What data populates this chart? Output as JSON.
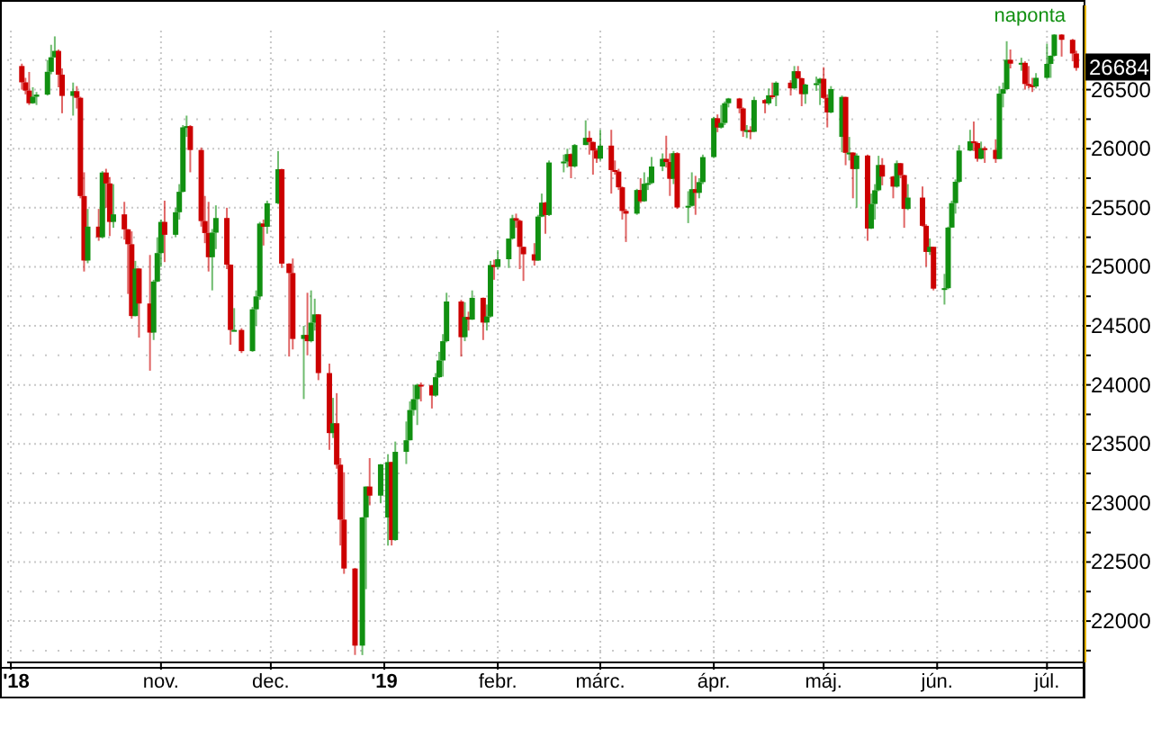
{
  "chart_data": {
    "type": "candlestick",
    "subtitle": "naponta",
    "annotations": [
      {
        "text": "26684",
        "x": "2019-07-09",
        "y": 26684
      }
    ],
    "x": [
      "2018-09-24",
      "2018-09-25",
      "2018-09-26",
      "2018-09-27",
      "2018-09-28",
      "2018-10-01",
      "2018-10-02",
      "2018-10-03",
      "2018-10-04",
      "2018-10-05",
      "2018-10-08",
      "2018-10-09",
      "2018-10-10",
      "2018-10-11",
      "2018-10-12",
      "2018-10-15",
      "2018-10-16",
      "2018-10-17",
      "2018-10-18",
      "2018-10-19",
      "2018-10-22",
      "2018-10-23",
      "2018-10-24",
      "2018-10-25",
      "2018-10-26",
      "2018-10-29",
      "2018-10-30",
      "2018-10-31",
      "2018-11-01",
      "2018-11-02",
      "2018-11-05",
      "2018-11-06",
      "2018-11-07",
      "2018-11-08",
      "2018-11-09",
      "2018-11-12",
      "2018-11-13",
      "2018-11-14",
      "2018-11-15",
      "2018-11-16",
      "2018-11-19",
      "2018-11-20",
      "2018-11-21",
      "2018-11-23",
      "2018-11-26",
      "2018-11-27",
      "2018-11-28",
      "2018-11-29",
      "2018-11-30",
      "2018-12-03",
      "2018-12-04",
      "2018-12-06",
      "2018-12-07",
      "2018-12-10",
      "2018-12-11",
      "2018-12-12",
      "2018-12-13",
      "2018-12-14",
      "2018-12-17",
      "2018-12-18",
      "2018-12-19",
      "2018-12-20",
      "2018-12-21",
      "2018-12-24",
      "2018-12-26",
      "2018-12-27",
      "2018-12-28",
      "2018-12-31",
      "2019-01-02",
      "2019-01-03",
      "2019-01-04",
      "2019-01-07",
      "2019-01-08",
      "2019-01-09",
      "2019-01-10",
      "2019-01-11",
      "2019-01-14",
      "2019-01-15",
      "2019-01-16",
      "2019-01-17",
      "2019-01-18",
      "2019-01-22",
      "2019-01-23",
      "2019-01-24",
      "2019-01-25",
      "2019-01-28",
      "2019-01-29",
      "2019-01-30",
      "2019-01-31",
      "2019-02-01",
      "2019-02-04",
      "2019-02-05",
      "2019-02-06",
      "2019-02-07",
      "2019-02-08",
      "2019-02-11",
      "2019-02-12",
      "2019-02-13",
      "2019-02-14",
      "2019-02-15",
      "2019-02-19",
      "2019-02-20",
      "2019-02-21",
      "2019-02-22",
      "2019-02-25",
      "2019-02-26",
      "2019-02-27",
      "2019-02-28",
      "2019-03-01",
      "2019-03-04",
      "2019-03-05",
      "2019-03-06",
      "2019-03-07",
      "2019-03-08",
      "2019-03-11",
      "2019-03-12",
      "2019-03-13",
      "2019-03-14",
      "2019-03-15",
      "2019-03-18",
      "2019-03-19",
      "2019-03-20",
      "2019-03-21",
      "2019-03-22",
      "2019-03-25",
      "2019-03-26",
      "2019-03-27",
      "2019-03-28",
      "2019-03-29",
      "2019-04-01",
      "2019-04-02",
      "2019-04-03",
      "2019-04-04",
      "2019-04-05",
      "2019-04-08",
      "2019-04-09",
      "2019-04-10",
      "2019-04-11",
      "2019-04-12",
      "2019-04-15",
      "2019-04-16",
      "2019-04-17",
      "2019-04-18",
      "2019-04-22",
      "2019-04-23",
      "2019-04-24",
      "2019-04-25",
      "2019-04-26",
      "2019-04-29",
      "2019-04-30",
      "2019-05-01",
      "2019-05-02",
      "2019-05-03",
      "2019-05-06",
      "2019-05-07",
      "2019-05-08",
      "2019-05-09",
      "2019-05-10",
      "2019-05-13",
      "2019-05-14",
      "2019-05-15",
      "2019-05-16",
      "2019-05-17",
      "2019-05-20",
      "2019-05-21",
      "2019-05-22",
      "2019-05-23",
      "2019-05-24",
      "2019-05-28",
      "2019-05-29",
      "2019-05-30",
      "2019-05-31",
      "2019-06-03",
      "2019-06-04",
      "2019-06-05",
      "2019-06-06",
      "2019-06-07",
      "2019-06-10",
      "2019-06-11",
      "2019-06-12",
      "2019-06-13",
      "2019-06-14",
      "2019-06-17",
      "2019-06-18",
      "2019-06-19",
      "2019-06-20",
      "2019-06-21",
      "2019-06-24",
      "2019-06-25",
      "2019-06-26",
      "2019-06-27",
      "2019-06-28",
      "2019-07-01",
      "2019-07-02",
      "2019-07-03",
      "2019-07-05",
      "2019-07-08",
      "2019-07-09"
    ],
    "ohlc": [
      [
        26700,
        26720,
        26500,
        26562
      ],
      [
        26562,
        26600,
        26460,
        26492
      ],
      [
        26492,
        26650,
        26370,
        26385
      ],
      [
        26385,
        26520,
        26380,
        26440
      ],
      [
        26440,
        26480,
        26370,
        26458
      ],
      [
        26458,
        26750,
        26450,
        26651
      ],
      [
        26651,
        26880,
        26630,
        26774
      ],
      [
        26774,
        26951,
        26770,
        26828
      ],
      [
        26828,
        26840,
        26520,
        26627
      ],
      [
        26627,
        26680,
        26300,
        26447
      ],
      [
        26447,
        26560,
        26280,
        26487
      ],
      [
        26487,
        26530,
        26340,
        26431
      ],
      [
        26431,
        26440,
        25580,
        25599
      ],
      [
        25599,
        25800,
        24960,
        25053
      ],
      [
        25053,
        25490,
        25030,
        25340
      ],
      [
        25340,
        25490,
        25220,
        25250
      ],
      [
        25250,
        25810,
        25240,
        25798
      ],
      [
        25798,
        25830,
        25500,
        25706
      ],
      [
        25706,
        25760,
        25260,
        25380
      ],
      [
        25380,
        25700,
        25330,
        25444
      ],
      [
        25444,
        25550,
        25230,
        25317
      ],
      [
        25317,
        25320,
        24770,
        25191
      ],
      [
        25191,
        25300,
        24560,
        24583
      ],
      [
        24583,
        25050,
        24580,
        24985
      ],
      [
        24985,
        24990,
        24400,
        24689
      ],
      [
        24689,
        25100,
        24120,
        24443
      ],
      [
        24443,
        24890,
        24380,
        24875
      ],
      [
        24875,
        25250,
        24870,
        25116
      ],
      [
        25116,
        25400,
        25000,
        25380
      ],
      [
        25380,
        25560,
        25040,
        25271
      ],
      [
        25271,
        25500,
        25250,
        25462
      ],
      [
        25462,
        25700,
        25400,
        25635
      ],
      [
        25635,
        26200,
        25630,
        26181
      ],
      [
        26181,
        26280,
        26100,
        26191
      ],
      [
        26191,
        26200,
        25800,
        25989
      ],
      [
        25989,
        26010,
        25340,
        25387
      ],
      [
        25387,
        25600,
        25200,
        25286
      ],
      [
        25286,
        25550,
        24960,
        25081
      ],
      [
        25081,
        25320,
        24800,
        25289
      ],
      [
        25289,
        25520,
        25150,
        25413
      ],
      [
        25413,
        25500,
        24980,
        25018
      ],
      [
        25018,
        25020,
        24340,
        24465
      ],
      [
        24465,
        24650,
        24460,
        24465
      ],
      [
        24465,
        24480,
        24270,
        24286
      ],
      [
        24286,
        24660,
        24280,
        24640
      ],
      [
        24640,
        24800,
        24500,
        24749
      ],
      [
        24749,
        25380,
        24720,
        25366
      ],
      [
        25366,
        25400,
        25180,
        25339
      ],
      [
        25339,
        25560,
        25280,
        25538
      ],
      [
        25538,
        25980,
        25530,
        25826
      ],
      [
        25826,
        25830,
        24990,
        25027
      ],
      [
        25027,
        25030,
        24240,
        24947
      ],
      [
        24947,
        25070,
        24300,
        24389
      ],
      [
        24389,
        24500,
        23880,
        24423
      ],
      [
        24423,
        24780,
        24250,
        24370
      ],
      [
        24370,
        24800,
        24360,
        24527
      ],
      [
        24527,
        24730,
        24460,
        24597
      ],
      [
        24597,
        24600,
        24040,
        24100
      ],
      [
        24100,
        24180,
        23450,
        23592
      ],
      [
        23592,
        23890,
        23550,
        23675
      ],
      [
        23675,
        23930,
        23290,
        23324
      ],
      [
        23324,
        23380,
        22640,
        22859
      ],
      [
        22859,
        23260,
        22400,
        22445
      ],
      [
        22445,
        22450,
        21713,
        21792
      ],
      [
        21792,
        22880,
        21712,
        22878
      ],
      [
        22878,
        23140,
        22270,
        23139
      ],
      [
        23139,
        23380,
        22980,
        23062
      ],
      [
        23062,
        23330,
        23000,
        23327
      ],
      [
        22877,
        23413,
        22639,
        23346
      ],
      [
        23346,
        23350,
        22640,
        22686
      ],
      [
        22686,
        23520,
        22680,
        23433
      ],
      [
        23433,
        23690,
        23330,
        23531
      ],
      [
        23531,
        23860,
        23530,
        23787
      ],
      [
        23787,
        24000,
        23740,
        23879
      ],
      [
        23879,
        24010,
        23660,
        24001
      ],
      [
        24001,
        24020,
        23860,
        23996
      ],
      [
        23996,
        24000,
        23800,
        23910
      ],
      [
        23910,
        24100,
        23900,
        24065
      ],
      [
        24065,
        24280,
        24060,
        24207
      ],
      [
        24207,
        24430,
        24070,
        24370
      ],
      [
        24370,
        24780,
        24360,
        24706
      ],
      [
        24706,
        24720,
        24240,
        24404
      ],
      [
        24404,
        24700,
        24370,
        24575
      ],
      [
        24575,
        24620,
        24460,
        24553
      ],
      [
        24553,
        24800,
        24550,
        24737
      ],
      [
        24737,
        24740,
        24380,
        24528
      ],
      [
        24528,
        24680,
        24460,
        24579
      ],
      [
        24579,
        25050,
        24570,
        25015
      ],
      [
        25015,
        25060,
        24890,
        24999
      ],
      [
        24999,
        25140,
        24980,
        25064
      ],
      [
        25064,
        25240,
        24990,
        25239
      ],
      [
        25239,
        25440,
        25230,
        25411
      ],
      [
        25411,
        25450,
        25330,
        25390
      ],
      [
        25390,
        25400,
        24980,
        25169
      ],
      [
        25169,
        25170,
        24880,
        25106
      ],
      [
        25106,
        25200,
        25010,
        25053
      ],
      [
        25053,
        25440,
        25050,
        25425
      ],
      [
        25425,
        25620,
        25420,
        25543
      ],
      [
        25543,
        25550,
        25280,
        25439
      ],
      [
        25439,
        25900,
        25430,
        25883
      ],
      [
        25883,
        25950,
        25800,
        25891
      ],
      [
        25891,
        26000,
        25840,
        25954
      ],
      [
        25954,
        25960,
        25750,
        25850
      ],
      [
        25850,
        26040,
        25840,
        26031
      ],
      [
        26031,
        26240,
        26030,
        26092
      ],
      [
        26092,
        26150,
        25950,
        26057
      ],
      [
        26057,
        26060,
        25780,
        25985
      ],
      [
        25985,
        26000,
        25880,
        25916
      ],
      [
        25916,
        26160,
        25900,
        26026
      ],
      [
        26026,
        26160,
        25620,
        25819
      ],
      [
        25819,
        25900,
        25780,
        25806
      ],
      [
        25806,
        25830,
        25650,
        25673
      ],
      [
        25673,
        25680,
        25400,
        25473
      ],
      [
        25473,
        25490,
        25210,
        25450
      ],
      [
        25450,
        25660,
        25440,
        25650
      ],
      [
        25650,
        25750,
        25540,
        25555
      ],
      [
        25555,
        25800,
        25550,
        25703
      ],
      [
        25703,
        25760,
        25650,
        25709
      ],
      [
        25709,
        25930,
        25700,
        25849
      ],
      [
        25849,
        25960,
        25810,
        25914
      ],
      [
        25914,
        26110,
        25840,
        25887
      ],
      [
        25887,
        25960,
        25600,
        25745
      ],
      [
        25745,
        25980,
        25700,
        25962
      ],
      [
        25962,
        25970,
        25490,
        25502
      ],
      [
        25502,
        25640,
        25370,
        25516
      ],
      [
        25516,
        25800,
        25510,
        25657
      ],
      [
        25657,
        25770,
        25440,
        25626
      ],
      [
        25626,
        25750,
        25580,
        25717
      ],
      [
        25717,
        25950,
        25700,
        25929
      ],
      [
        25929,
        26270,
        25920,
        26258
      ],
      [
        26258,
        26290,
        26140,
        26179
      ],
      [
        26179,
        26370,
        26170,
        26218
      ],
      [
        26218,
        26400,
        26200,
        26385
      ],
      [
        26385,
        26430,
        26350,
        26425
      ],
      [
        26425,
        26430,
        26300,
        26341
      ],
      [
        26341,
        26350,
        26100,
        26150
      ],
      [
        26150,
        26200,
        26090,
        26157
      ],
      [
        26157,
        26190,
        26080,
        26143
      ],
      [
        26143,
        26440,
        26140,
        26412
      ],
      [
        26412,
        26420,
        26300,
        26384
      ],
      [
        26384,
        26510,
        26370,
        26452
      ],
      [
        26452,
        26560,
        26420,
        26449
      ],
      [
        26449,
        26570,
        26360,
        26559
      ],
      [
        26559,
        26580,
        26450,
        26511
      ],
      [
        26511,
        26700,
        26500,
        26656
      ],
      [
        26656,
        26700,
        26590,
        26597
      ],
      [
        26597,
        26600,
        26360,
        26462
      ],
      [
        26462,
        26550,
        26380,
        26543
      ],
      [
        26543,
        26610,
        26490,
        26554
      ],
      [
        26554,
        26600,
        26370,
        26592
      ],
      [
        26592,
        26690,
        26420,
        26430
      ],
      [
        26430,
        26460,
        26180,
        26307
      ],
      [
        26307,
        26530,
        26300,
        26505
      ],
      [
        26100,
        26450,
        25970,
        26438
      ],
      [
        26438,
        26440,
        25860,
        25965
      ],
      [
        25965,
        26100,
        25900,
        25967
      ],
      [
        25967,
        25970,
        25580,
        25828
      ],
      [
        25828,
        25960,
        25500,
        25942
      ],
      [
        25942,
        25950,
        25220,
        25324
      ],
      [
        25324,
        25620,
        25320,
        25532
      ],
      [
        25532,
        25700,
        25400,
        25648
      ],
      [
        25648,
        25940,
        25640,
        25862
      ],
      [
        25862,
        25920,
        25690,
        25764
      ],
      [
        25764,
        25770,
        25580,
        25679
      ],
      [
        25679,
        25900,
        25670,
        25877
      ],
      [
        25877,
        25880,
        25750,
        25776
      ],
      [
        25776,
        25780,
        25330,
        25490
      ],
      [
        25490,
        25700,
        25480,
        25586
      ],
      [
        25586,
        25680,
        25340,
        25347
      ],
      [
        25347,
        25360,
        25000,
        25126
      ],
      [
        25126,
        25240,
        25100,
        25169
      ],
      [
        25169,
        25170,
        24800,
        24815
      ],
      [
        24815,
        24940,
        24680,
        24819
      ],
      [
        24819,
        25340,
        24810,
        25332
      ],
      [
        25332,
        25560,
        25330,
        25539
      ],
      [
        25539,
        25740,
        25450,
        25720
      ],
      [
        25720,
        26030,
        25710,
        25984
      ],
      [
        25984,
        26160,
        25980,
        26062
      ],
      [
        26062,
        26230,
        25980,
        26048
      ],
      [
        26048,
        26060,
        25890,
        25915
      ],
      [
        25915,
        26060,
        25910,
        26004
      ],
      [
        26004,
        26020,
        25880,
        25990
      ],
      [
        25990,
        26080,
        25880,
        25913
      ],
      [
        25913,
        26530,
        25910,
        26466
      ],
      [
        26466,
        26560,
        26350,
        26504
      ],
      [
        26504,
        26910,
        26500,
        26753
      ],
      [
        26753,
        26840,
        26680,
        26720
      ],
      [
        26720,
        26770,
        26660,
        26727
      ],
      [
        26727,
        26740,
        26500,
        26548
      ],
      [
        26548,
        26700,
        26510,
        26537
      ],
      [
        26537,
        26600,
        26480,
        26527
      ],
      [
        26527,
        26640,
        26510,
        26600
      ],
      [
        26600,
        26890,
        26590,
        26718
      ],
      [
        26718,
        26790,
        26600,
        26787
      ],
      [
        26787,
        26970,
        26780,
        26966
      ],
      [
        26966,
        26970,
        26780,
        26922
      ],
      [
        26922,
        26930,
        26740,
        26806
      ],
      [
        26806,
        26830,
        26660,
        26684
      ]
    ],
    "xlim": [
      "2018-09-20",
      "2019-07-11"
    ],
    "xticks": [
      {
        "value": "2018-09-21",
        "label": "'18"
      },
      {
        "value": "2018-11-01",
        "label": "nov."
      },
      {
        "value": "2018-12-01",
        "label": "dec."
      },
      {
        "value": "2019-01-01",
        "label": "'19"
      },
      {
        "value": "2019-02-01",
        "label": "febr."
      },
      {
        "value": "2019-03-01",
        "label": "márc."
      },
      {
        "value": "2019-04-01",
        "label": "ápr."
      },
      {
        "value": "2019-05-01",
        "label": "máj."
      },
      {
        "value": "2019-06-01",
        "label": "jún."
      },
      {
        "value": "2019-07-01",
        "label": "júl."
      }
    ],
    "ylim": [
      21650,
      27000
    ],
    "yticks": [
      {
        "value": 21750,
        "label": null
      },
      22000,
      {
        "value": 22250,
        "label": null
      },
      22500,
      {
        "value": 22750,
        "label": null
      },
      23000,
      {
        "value": 23250,
        "label": null
      },
      23500,
      {
        "value": 23750,
        "label": null
      },
      24000,
      {
        "value": 24250,
        "label": null
      },
      24500,
      {
        "value": 24750,
        "label": null
      },
      25000,
      {
        "value": 25250,
        "label": null
      },
      25500,
      {
        "value": 25750,
        "label": null
      },
      26000,
      {
        "value": 26250,
        "label": null
      },
      26500,
      {
        "value": 26750,
        "label": null
      }
    ],
    "grid": true
  }
}
